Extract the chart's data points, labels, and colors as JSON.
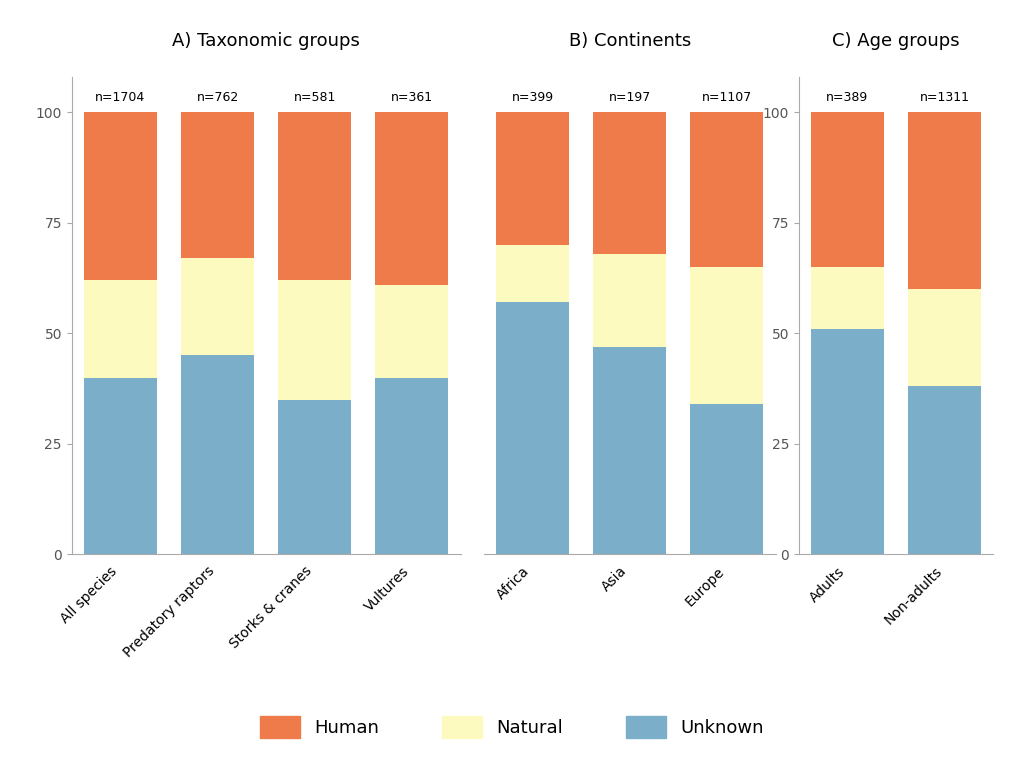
{
  "panel_A": {
    "title": "A) Taxonomic groups",
    "categories": [
      "All species",
      "Predatory raptors",
      "Storks & cranes",
      "Vultures"
    ],
    "n_labels": [
      "n=1704",
      "n=762",
      "n=581",
      "n=361"
    ],
    "unknown": [
      40,
      45,
      35,
      40
    ],
    "natural": [
      22,
      22,
      27,
      21
    ],
    "human": [
      38,
      33,
      38,
      39
    ],
    "show_yticks": true
  },
  "panel_B": {
    "title": "B) Continents",
    "categories": [
      "Africa",
      "Asia",
      "Europe"
    ],
    "n_labels": [
      "n=399",
      "n=197",
      "n=1107"
    ],
    "unknown": [
      57,
      47,
      34
    ],
    "natural": [
      13,
      21,
      31
    ],
    "human": [
      30,
      32,
      35
    ],
    "show_yticks": false
  },
  "panel_C": {
    "title": "C) Age groups",
    "categories": [
      "Adults",
      "Non-adults"
    ],
    "n_labels": [
      "n=389",
      "n=1311"
    ],
    "unknown": [
      51,
      38
    ],
    "natural": [
      14,
      22
    ],
    "human": [
      35,
      40
    ],
    "show_yticks": true
  },
  "colors": {
    "unknown": "#7BAEC8",
    "natural": "#FDFAC0",
    "human": "#F07B4A"
  },
  "legend": {
    "human": "Human",
    "natural": "Natural",
    "unknown": "Unknown"
  },
  "yticks": [
    0,
    25,
    50,
    75,
    100
  ],
  "background_color": "#FFFFFF"
}
